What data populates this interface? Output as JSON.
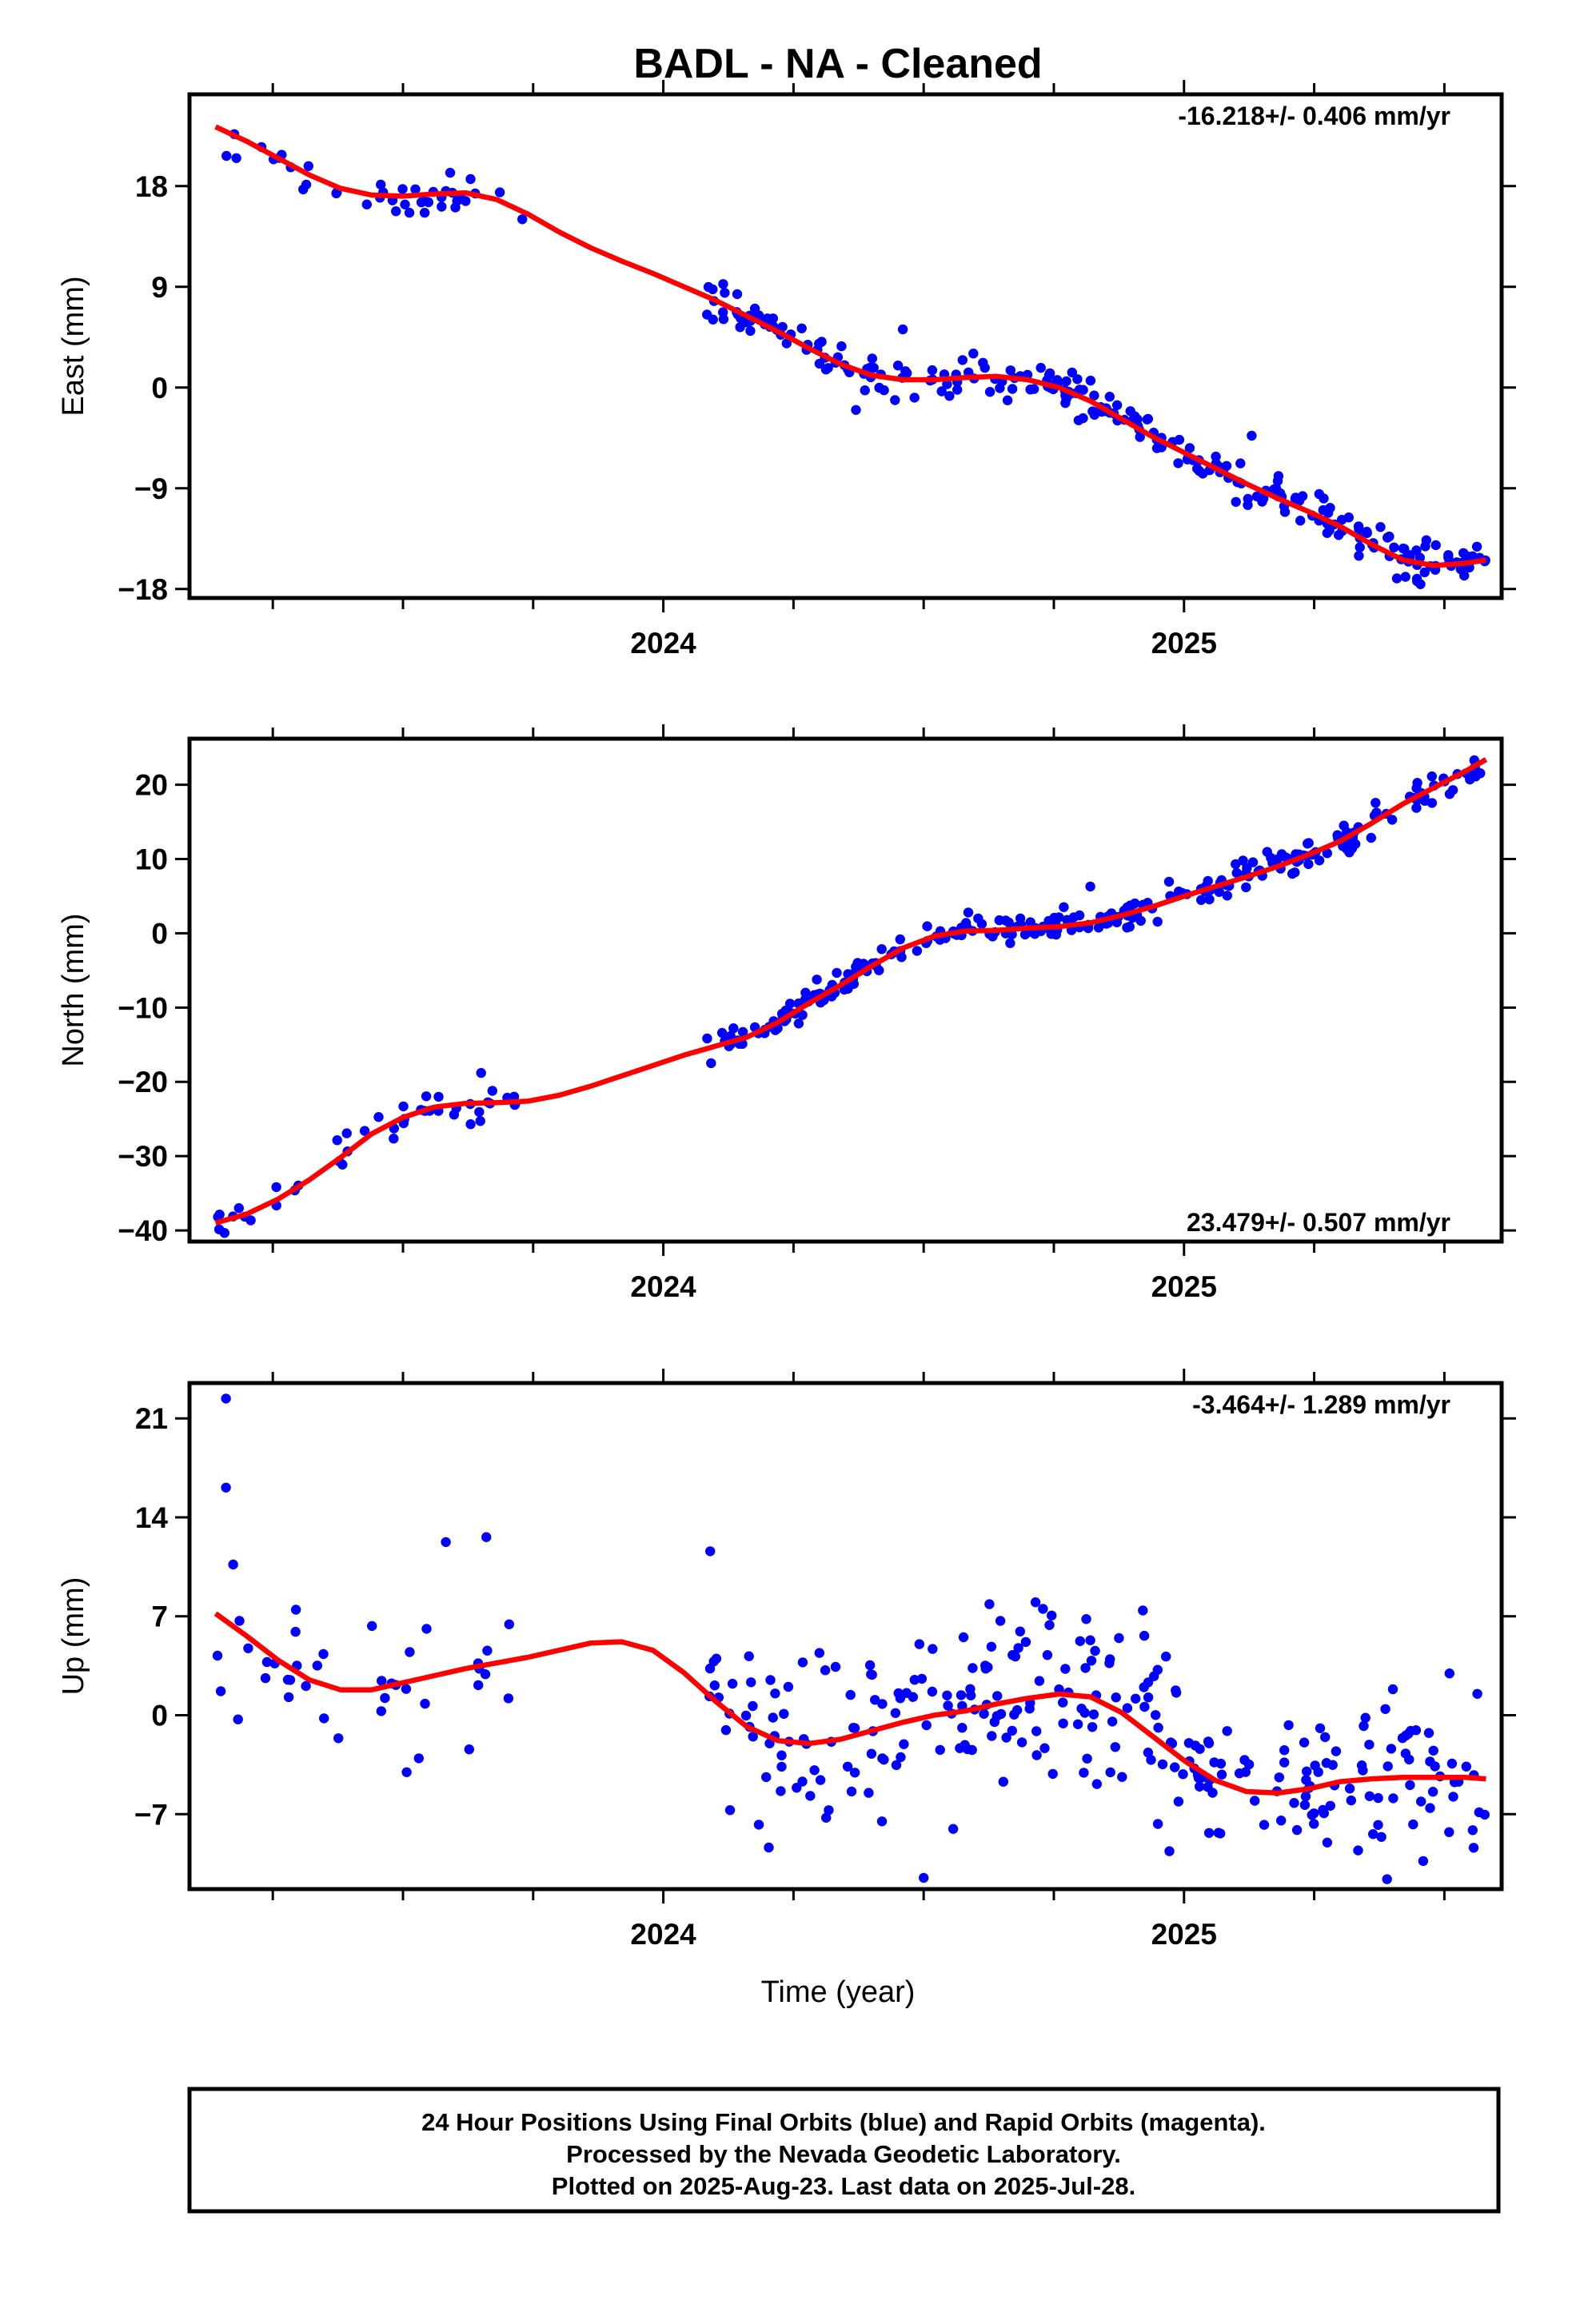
{
  "title": "BADL  - NA - Cleaned",
  "xlabel": "Time (year)",
  "footer": {
    "line1": "24 Hour Positions Using Final Orbits (blue) and Rapid Orbits (magenta).",
    "line2": "Processed by the Nevada Geodetic Laboratory.",
    "line3": "Plotted on 2025-Aug-23. Last data on 2025-Jul-28."
  },
  "colors": {
    "final_orbits": "#0000ff",
    "model_fit": "#ff0000",
    "axes": "#000000"
  },
  "chart_data": [
    {
      "type": "scatter",
      "component": "east",
      "ylabel": "East (mm)",
      "rate_text": "-16.218+/- 0.406 mm/yr",
      "rate_position": "top-right",
      "xlim": [
        2023.09,
        2025.61
      ],
      "ylim": [
        -18.8,
        26.2
      ],
      "x_ticks": [
        "2024",
        "2025"
      ],
      "y_ticks": [
        "18",
        "9",
        "0",
        "−9",
        "−18"
      ],
      "y_tick_values": [
        18,
        9,
        0,
        -9,
        -18
      ],
      "gap": [
        2023.73,
        2024.08
      ],
      "fit": {
        "name": "model",
        "x": [
          2023.14,
          2023.2,
          2023.26,
          2023.32,
          2023.38,
          2023.44,
          2023.5,
          2023.56,
          2023.62,
          2023.68,
          2023.74,
          2023.8,
          2023.86,
          2023.92,
          2023.98,
          2024.04,
          2024.1,
          2024.16,
          2024.22,
          2024.28,
          2024.34,
          2024.4,
          2024.46,
          2024.52,
          2024.58,
          2024.64,
          2024.7,
          2024.76,
          2024.82,
          2024.88,
          2024.94,
          2025.0,
          2025.06,
          2025.12,
          2025.18,
          2025.24,
          2025.3,
          2025.36,
          2025.42,
          2025.48,
          2025.54,
          2025.58
        ],
        "y": [
          23.3,
          22.0,
          20.5,
          19.0,
          17.8,
          17.2,
          17.1,
          17.3,
          17.4,
          16.8,
          15.5,
          13.9,
          12.5,
          11.3,
          10.2,
          9.0,
          7.8,
          6.4,
          5.0,
          3.5,
          2.1,
          1.1,
          0.7,
          0.7,
          0.9,
          1.0,
          0.7,
          0.0,
          -1.2,
          -2.8,
          -4.4,
          -5.8,
          -7.2,
          -8.6,
          -9.9,
          -11.1,
          -12.4,
          -14.0,
          -15.4,
          -15.9,
          -15.7,
          -15.4
        ]
      },
      "observations": {
        "name": "Final Orbits",
        "noise_mm": 0.9,
        "range": [
          2023.14,
          2025.58
        ],
        "count": 440,
        "outliers": [
          {
            "x": 2023.18,
            "y": 20.5
          },
          {
            "x": 2024.46,
            "y": 5.2
          },
          {
            "x": 2025.13,
            "y": -4.3
          },
          {
            "x": 2024.37,
            "y": -2.0
          }
        ]
      }
    },
    {
      "type": "scatter",
      "component": "north",
      "ylabel": "North (mm)",
      "rate_text": "23.479+/- 0.507 mm/yr",
      "rate_position": "bottom-right",
      "xlim": [
        2023.09,
        2025.61
      ],
      "ylim": [
        -41.5,
        26.2
      ],
      "x_ticks": [
        "2024",
        "2025"
      ],
      "y_ticks": [
        "20",
        "10",
        "0",
        "−10",
        "−20",
        "−30",
        "−40"
      ],
      "y_tick_values": [
        20,
        10,
        0,
        -10,
        -20,
        -30,
        -40
      ],
      "gap": [
        2023.73,
        2024.08
      ],
      "fit": {
        "name": "model",
        "x": [
          2023.14,
          2023.2,
          2023.26,
          2023.32,
          2023.38,
          2023.44,
          2023.5,
          2023.56,
          2023.62,
          2023.68,
          2023.74,
          2023.8,
          2023.86,
          2023.92,
          2023.98,
          2024.04,
          2024.1,
          2024.16,
          2024.22,
          2024.28,
          2024.34,
          2024.4,
          2024.46,
          2024.52,
          2024.58,
          2024.64,
          2024.7,
          2024.76,
          2024.82,
          2024.88,
          2024.94,
          2025.0,
          2025.06,
          2025.12,
          2025.18,
          2025.24,
          2025.3,
          2025.36,
          2025.42,
          2025.48,
          2025.54,
          2025.58
        ],
        "y": [
          -39.0,
          -37.8,
          -35.8,
          -33.2,
          -30.2,
          -27.0,
          -24.8,
          -23.4,
          -22.9,
          -22.8,
          -22.6,
          -21.8,
          -20.6,
          -19.2,
          -17.8,
          -16.4,
          -15.2,
          -14.0,
          -12.0,
          -9.4,
          -7.0,
          -4.4,
          -2.0,
          -0.4,
          0.3,
          0.4,
          0.7,
          0.9,
          1.4,
          2.4,
          3.6,
          5.0,
          6.3,
          7.6,
          9.0,
          10.6,
          12.4,
          14.8,
          17.4,
          19.6,
          21.8,
          23.4
        ]
      },
      "observations": {
        "name": "Final Orbits",
        "noise_mm": 1.0,
        "range": [
          2023.14,
          2025.58
        ],
        "count": 440,
        "outliers": [
          {
            "x": 2023.65,
            "y": -18.8
          },
          {
            "x": 2024.82,
            "y": 6.3
          },
          {
            "x": 2023.63,
            "y": -25.7
          }
        ]
      }
    },
    {
      "type": "scatter",
      "component": "up",
      "ylabel": "Up (mm)",
      "rate_text": "-3.464+/- 1.289 mm/yr",
      "rate_position": "top-right",
      "xlim": [
        2023.09,
        2025.61
      ],
      "ylim": [
        -12.3,
        23.5
      ],
      "x_ticks": [
        "2024",
        "2025"
      ],
      "y_ticks": [
        "21",
        "14",
        "7",
        "0",
        "−7"
      ],
      "y_tick_values": [
        21,
        14,
        7,
        0,
        -7
      ],
      "gap": [
        2023.73,
        2024.08
      ],
      "fit": {
        "name": "model",
        "x": [
          2023.14,
          2023.2,
          2023.26,
          2023.32,
          2023.38,
          2023.44,
          2023.5,
          2023.56,
          2023.62,
          2023.68,
          2023.74,
          2023.8,
          2023.86,
          2023.92,
          2023.98,
          2024.04,
          2024.1,
          2024.16,
          2024.22,
          2024.28,
          2024.34,
          2024.4,
          2024.46,
          2024.52,
          2024.58,
          2024.64,
          2024.7,
          2024.76,
          2024.82,
          2024.88,
          2024.94,
          2025.0,
          2025.06,
          2025.12,
          2025.18,
          2025.24,
          2025.3,
          2025.36,
          2025.42,
          2025.48,
          2025.54,
          2025.58
        ],
        "y": [
          7.2,
          5.6,
          3.9,
          2.5,
          1.8,
          1.8,
          2.3,
          2.8,
          3.3,
          3.7,
          4.1,
          4.6,
          5.1,
          5.2,
          4.6,
          3.0,
          1.0,
          -0.8,
          -1.8,
          -2.0,
          -1.7,
          -1.1,
          -0.5,
          0.0,
          0.3,
          0.8,
          1.2,
          1.5,
          1.3,
          0.2,
          -1.5,
          -3.2,
          -4.6,
          -5.4,
          -5.5,
          -5.2,
          -4.7,
          -4.5,
          -4.4,
          -4.4,
          -4.4,
          -4.5
        ]
      },
      "observations": {
        "name": "Final Orbits",
        "noise_mm": 3.2,
        "range": [
          2023.14,
          2025.58
        ],
        "count": 440,
        "outliers": [
          {
            "x": 2023.16,
            "y": 22.4
          },
          {
            "x": 2023.16,
            "y": 16.1
          },
          {
            "x": 2024.5,
            "y": -11.5
          },
          {
            "x": 2025.39,
            "y": -11.6
          },
          {
            "x": 2023.66,
            "y": 12.6
          },
          {
            "x": 2024.09,
            "y": 11.6
          }
        ]
      }
    }
  ]
}
